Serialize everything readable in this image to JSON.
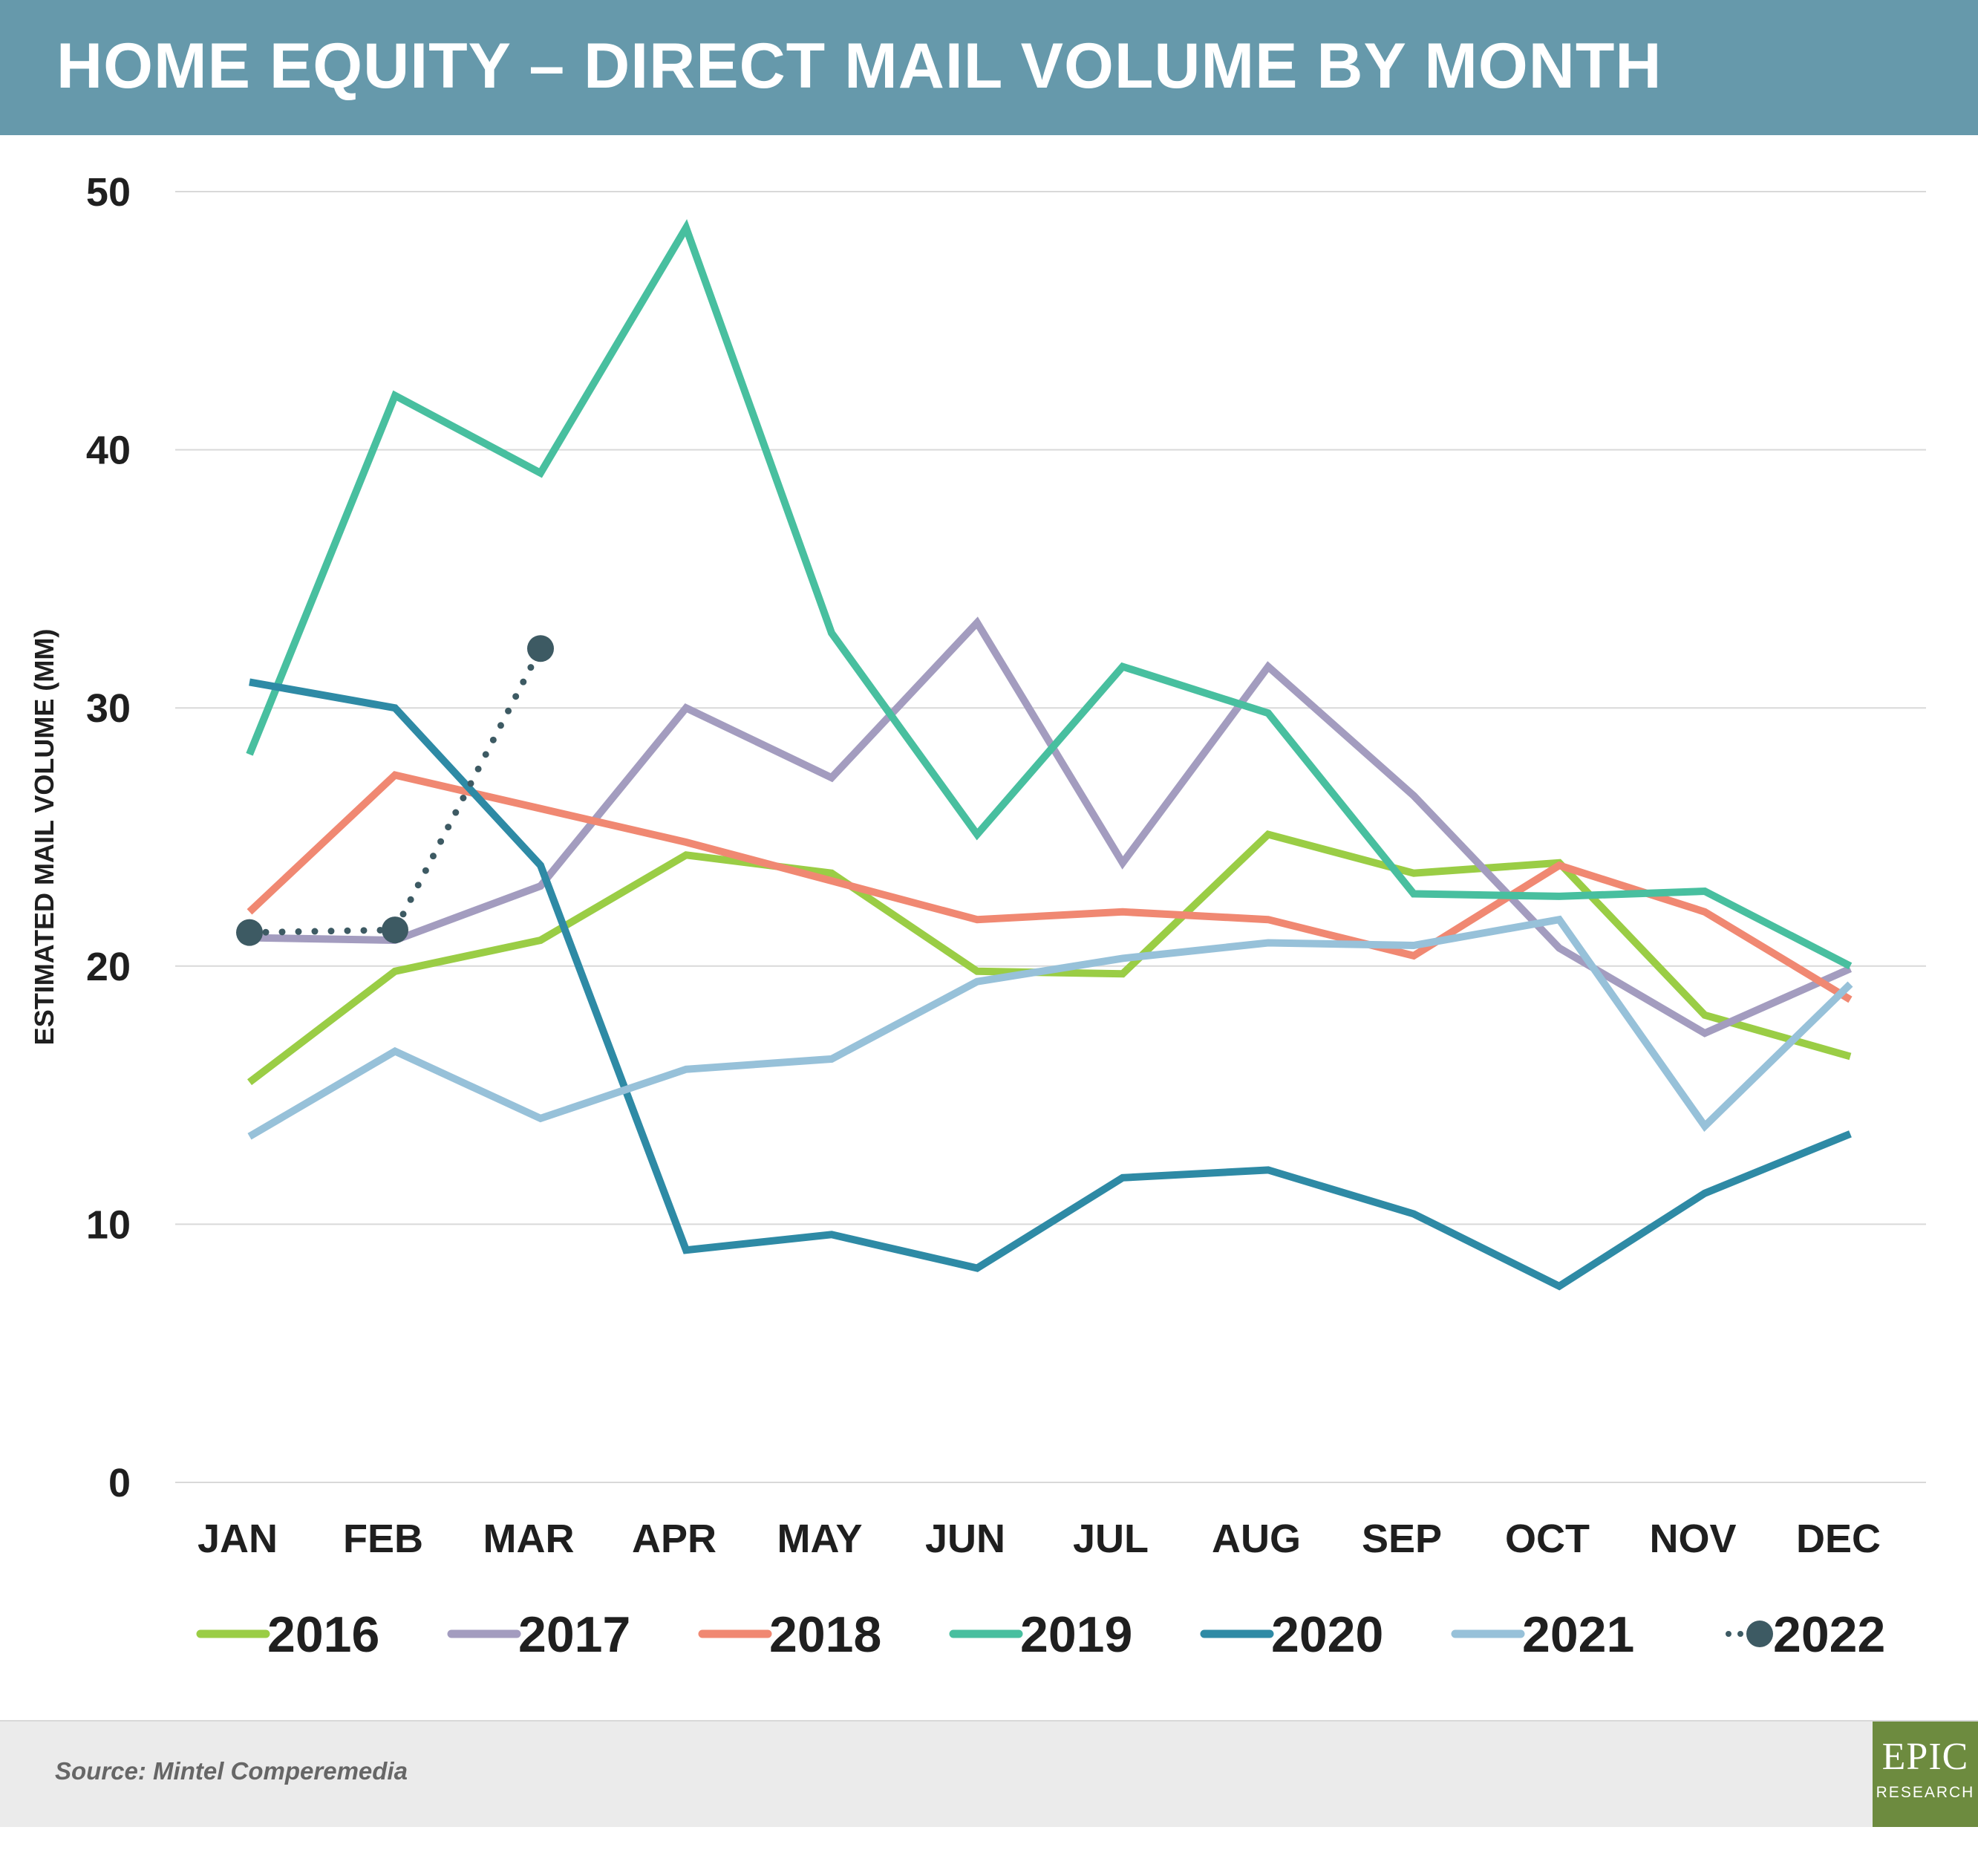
{
  "header": {
    "title": "HOME EQUITY – DIRECT MAIL VOLUME BY MONTH"
  },
  "footer": {
    "source": "Source: Mintel Comperemedia"
  },
  "logo": {
    "main": "EPIC",
    "sub": "RESEARCH"
  },
  "colors": {
    "header_bg": "#6699ab",
    "grid": "#d9d9d9",
    "text": "#1f1f1f",
    "logo_bg": "#6d8b3f"
  },
  "chart_data": {
    "type": "line",
    "title": "HOME EQUITY – DIRECT MAIL VOLUME BY MONTH",
    "xlabel": "",
    "ylabel": "ESTIMATED MAIL VOLUME (MM)",
    "ylim": [
      0,
      50
    ],
    "yticks": [
      0,
      10,
      20,
      30,
      40,
      50
    ],
    "grid": true,
    "legend_position": "bottom",
    "categories": [
      "JAN",
      "FEB",
      "MAR",
      "APR",
      "MAY",
      "JUN",
      "JUL",
      "AUG",
      "SEP",
      "OCT",
      "NOV",
      "DEC"
    ],
    "series": [
      {
        "name": "2016",
        "color": "#9acd45",
        "style": "solid",
        "values": [
          15.5,
          19.8,
          21.0,
          24.3,
          23.6,
          19.8,
          19.7,
          25.1,
          23.6,
          24.0,
          18.1,
          16.5
        ]
      },
      {
        "name": "2017",
        "color": "#a39cbf",
        "style": "solid",
        "values": [
          21.1,
          21.0,
          23.1,
          30.0,
          27.3,
          33.3,
          24.0,
          31.6,
          26.6,
          20.7,
          17.4,
          19.9
        ]
      },
      {
        "name": "2018",
        "color": "#f08872",
        "style": "solid",
        "values": [
          22.1,
          27.4,
          26.1,
          24.8,
          23.3,
          21.8,
          22.1,
          21.8,
          20.4,
          23.9,
          22.1,
          18.7
        ]
      },
      {
        "name": "2019",
        "color": "#48bf9f",
        "style": "solid",
        "values": [
          28.2,
          42.1,
          39.1,
          48.6,
          32.9,
          25.1,
          31.6,
          29.8,
          22.8,
          22.7,
          22.9,
          20.0
        ]
      },
      {
        "name": "2020",
        "color": "#2e8aa5",
        "style": "solid",
        "values": [
          31.0,
          30.0,
          23.9,
          9.0,
          9.6,
          8.3,
          11.8,
          12.1,
          10.4,
          7.6,
          11.2,
          13.5
        ]
      },
      {
        "name": "2021",
        "color": "#97c1d9",
        "style": "solid",
        "values": [
          13.4,
          16.7,
          14.1,
          16.0,
          16.4,
          19.4,
          20.3,
          20.9,
          20.8,
          21.8,
          13.8,
          19.3
        ]
      },
      {
        "name": "2022",
        "color": "#3d5a63",
        "style": "dotted",
        "values": [
          21.3,
          21.4,
          32.3,
          null,
          null,
          null,
          null,
          null,
          null,
          null,
          null,
          null
        ]
      }
    ]
  }
}
